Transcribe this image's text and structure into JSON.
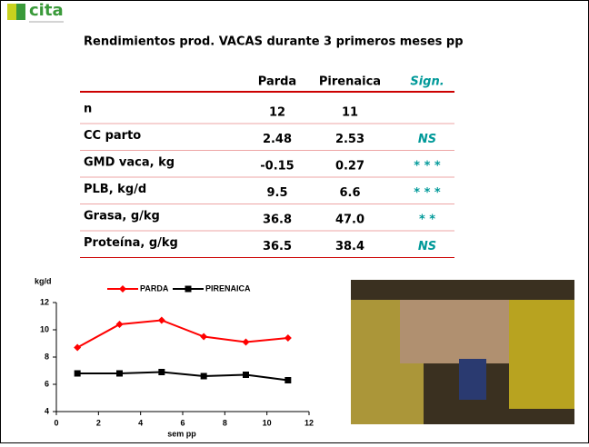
{
  "logo": {
    "text": "cita"
  },
  "header": {
    "title": "Rendimientos prod. VACAS durante 3 primeros meses pp"
  },
  "table": {
    "columns": [
      "Parda",
      "Pirenaica",
      "Sign."
    ],
    "rows": [
      [
        "n",
        "12",
        "11"
      ],
      [
        "CC parto",
        "2.48",
        "2.53",
        "NS"
      ],
      [
        "GMD vaca, kg",
        "-0.15",
        "0.27",
        "* * *"
      ],
      [
        "PLB, kg/d",
        "9.5",
        "6.6",
        "* * *"
      ],
      [
        "Grasa, g/kg",
        "36.8",
        "47.0",
        "* *"
      ],
      [
        "Proteína, g/kg",
        "36.5",
        "38.4",
        "NS"
      ]
    ]
  },
  "chart_data": {
    "type": "line",
    "y_label": "kg/d",
    "x_label": "sem pp",
    "x": [
      1,
      3,
      5,
      7,
      9,
      11
    ],
    "series": [
      {
        "name": "PARDA",
        "color": "#ff0000",
        "marker": "diamond",
        "values": [
          8.7,
          10.4,
          10.7,
          9.5,
          9.1,
          9.4
        ]
      },
      {
        "name": "PIRENAICA",
        "color": "#000000",
        "marker": "square",
        "values": [
          6.8,
          6.8,
          6.9,
          6.6,
          6.7,
          6.3
        ]
      }
    ],
    "xlim": [
      0,
      12
    ],
    "xticks": [
      0,
      2,
      4,
      6,
      8,
      10,
      12
    ],
    "ylim": [
      4,
      12
    ],
    "yticks": [
      4,
      6,
      8,
      10,
      12
    ],
    "legend": "top"
  }
}
